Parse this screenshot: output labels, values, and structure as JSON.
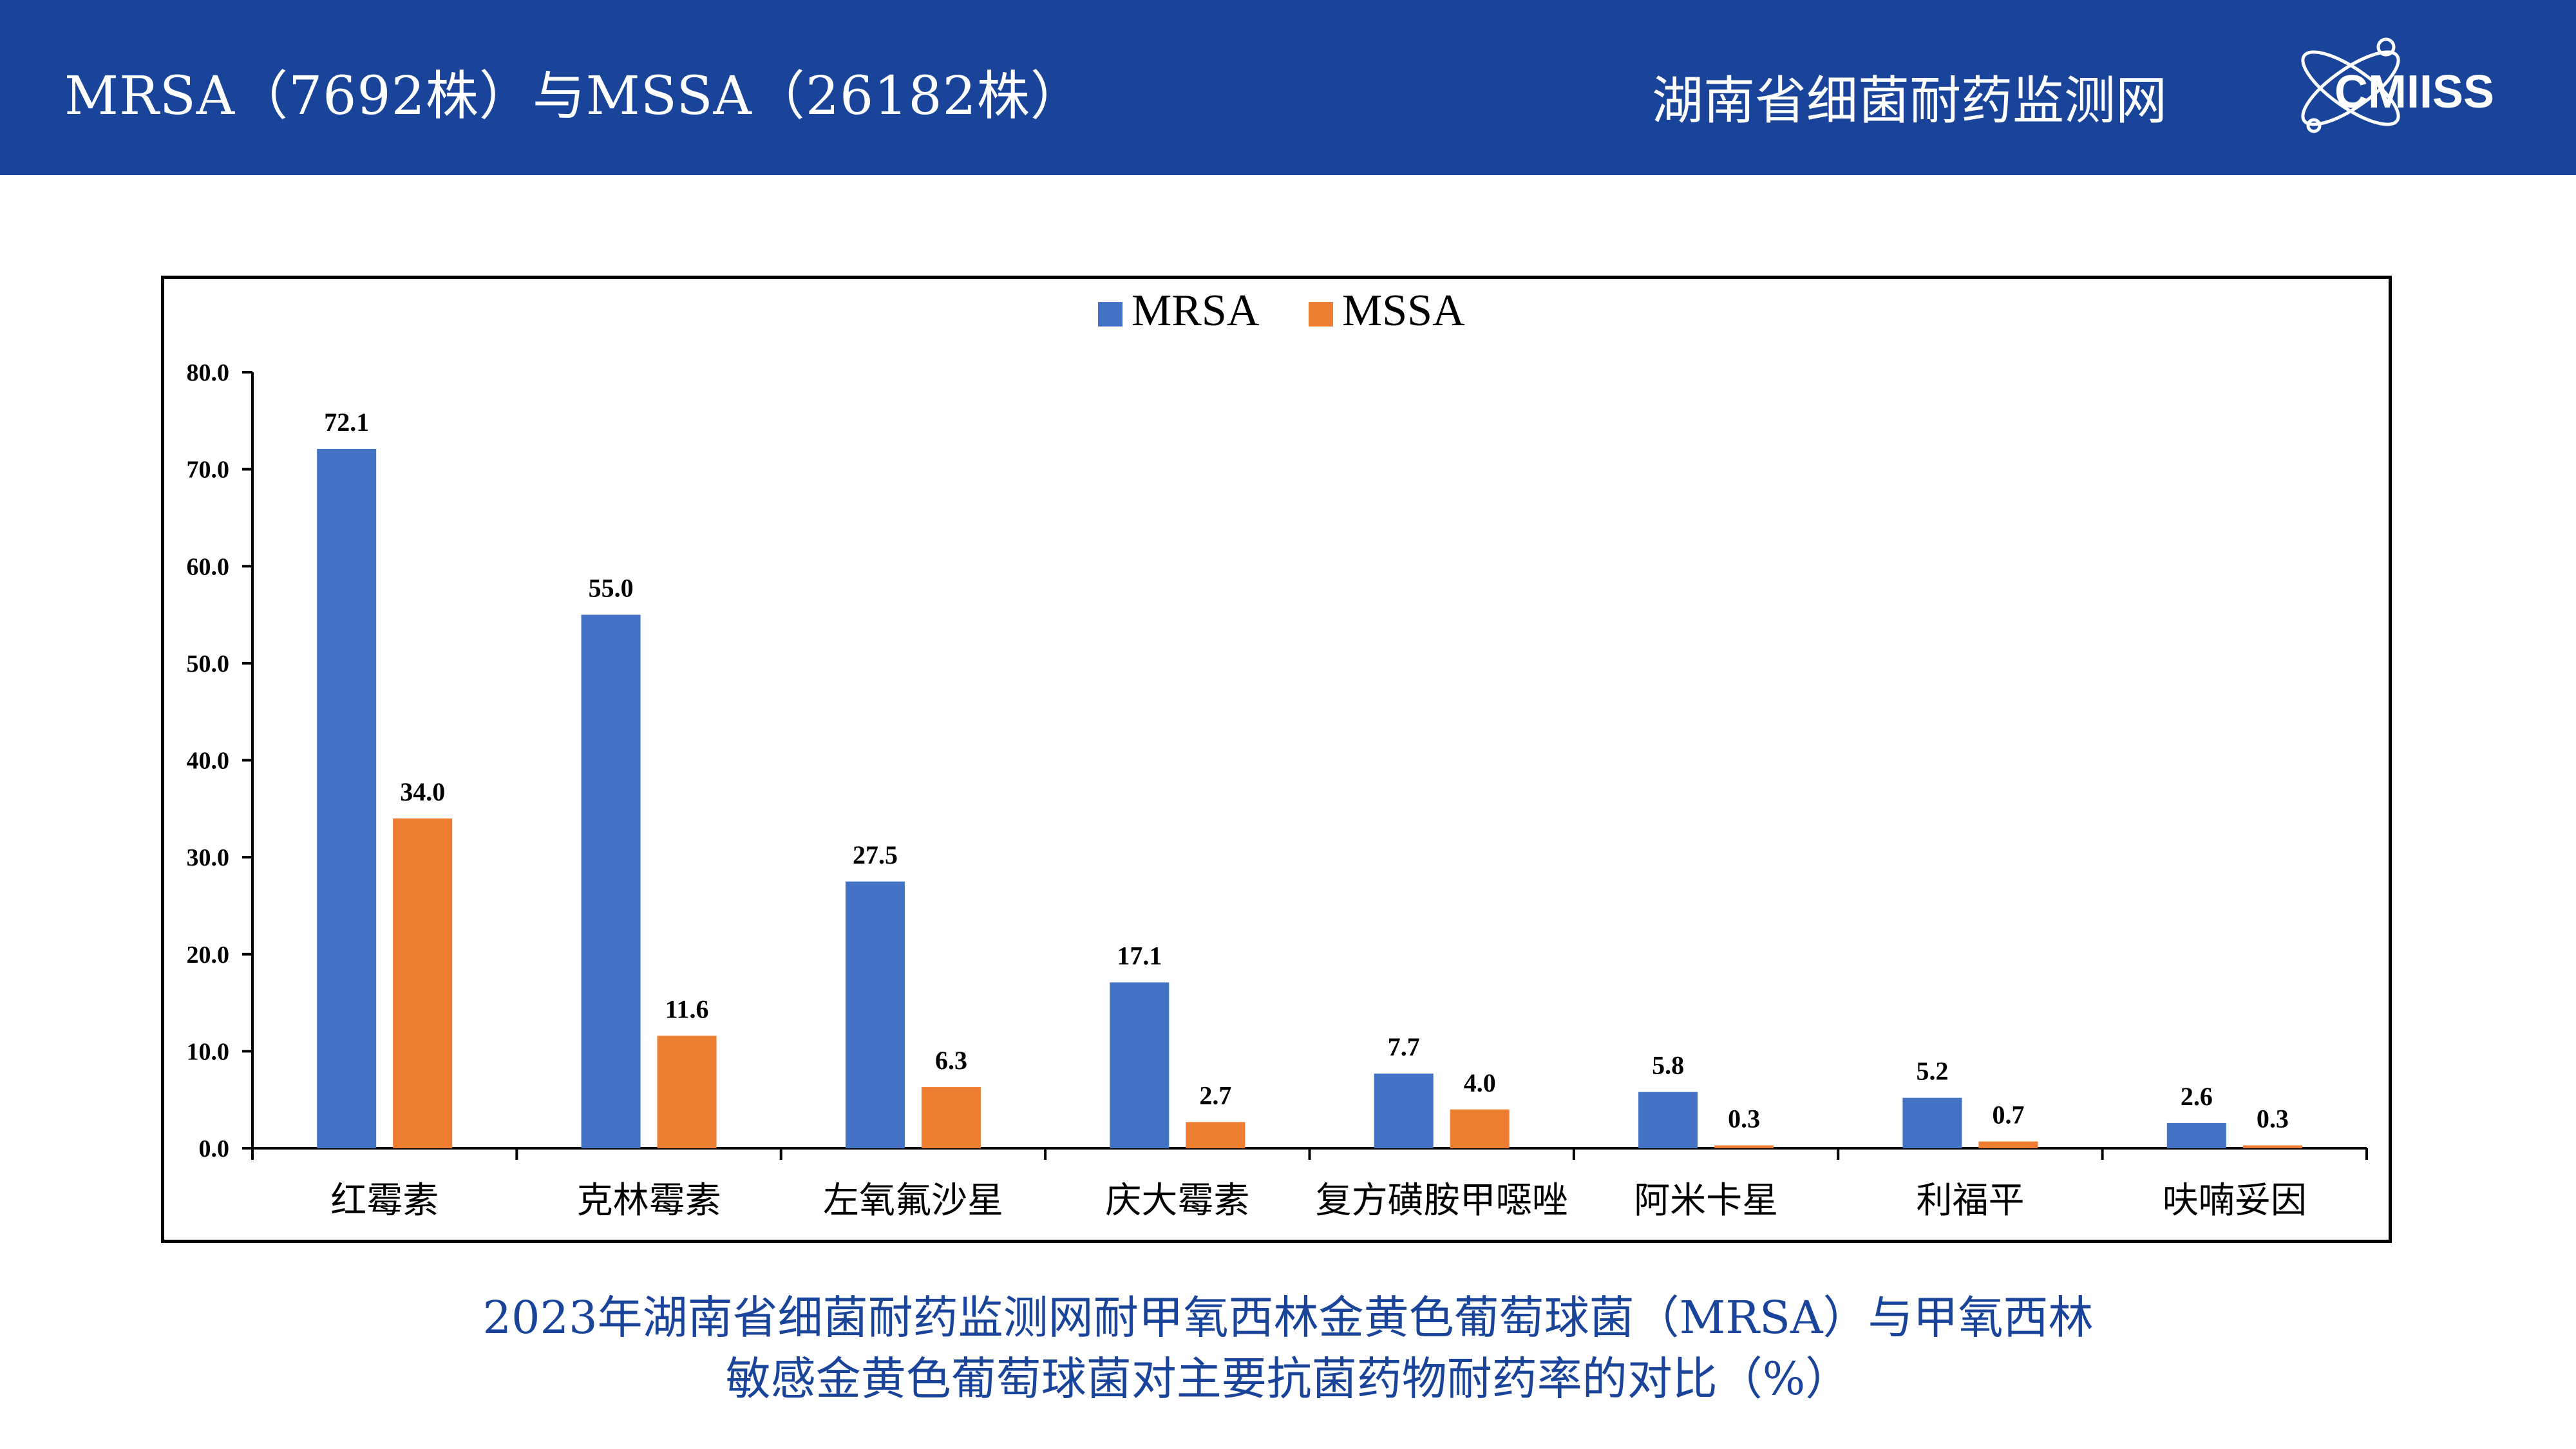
{
  "header": {
    "title": "MRSA（7692株）与MSSA（26182株）",
    "org": "湖南省细菌耐药监测网",
    "logo_text": "CMIISS",
    "background_color": "#1a449a"
  },
  "caption": {
    "line1": "2023年湖南省细菌耐药监测网耐甲氧西林金黄色葡萄球菌（MRSA）与甲氧西林",
    "line2": "敏感金黄色葡萄球菌对主要抗菌药物耐药率的对比（%）"
  },
  "chart_data": {
    "type": "bar",
    "categories": [
      "红霉素",
      "克林霉素",
      "左氧氟沙星",
      "庆大霉素",
      "复方磺胺甲噁唑",
      "阿米卡星",
      "利福平",
      "呋喃妥因"
    ],
    "series": [
      {
        "name": "MRSA",
        "color": "#4472c4",
        "values": [
          72.1,
          55.0,
          27.5,
          17.1,
          7.7,
          5.8,
          5.2,
          2.6
        ]
      },
      {
        "name": "MSSA",
        "color": "#ed7d31",
        "values": [
          34.0,
          11.6,
          6.3,
          2.7,
          4.0,
          0.3,
          0.7,
          0.3
        ]
      }
    ],
    "ylim": [
      0,
      80
    ],
    "yticks": [
      0,
      10,
      20,
      30,
      40,
      50,
      60,
      70,
      80
    ],
    "tick_decimals": 1,
    "label_decimals": 1,
    "legend_position": "top-center",
    "grid": false
  }
}
